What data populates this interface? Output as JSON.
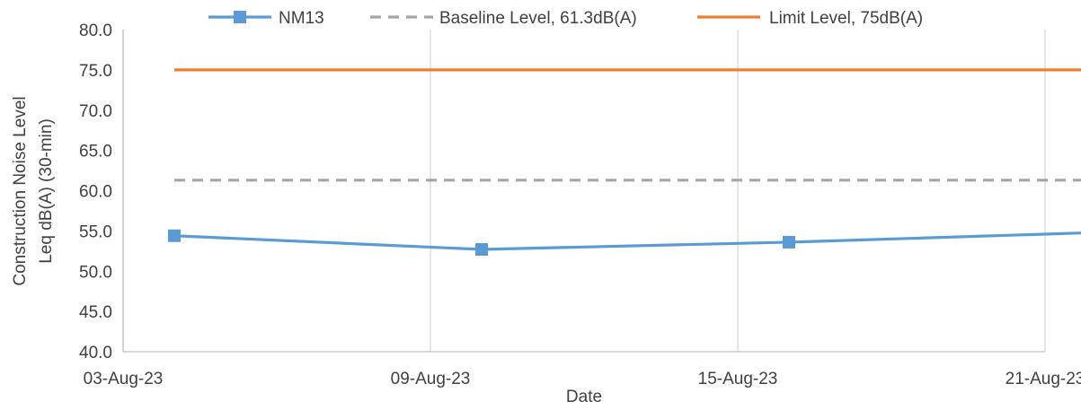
{
  "chart_data": {
    "type": "line",
    "xlabel": "Date",
    "ylabel_lines": [
      "Construction Noise Level",
      "Leq dB(A) (30-min)"
    ],
    "x_ticks": [
      "03-Aug-23",
      "09-Aug-23",
      "15-Aug-23",
      "21-Aug-23"
    ],
    "xlim": [
      "2023-08-03",
      "2023-08-21"
    ],
    "ylim": [
      40,
      80
    ],
    "y_ticks": [
      "40.0",
      "45.0",
      "50.0",
      "55.0",
      "60.0",
      "65.0",
      "70.0",
      "75.0",
      "80.0"
    ],
    "grid": "vertical",
    "legend_position": "top",
    "series": [
      {
        "name": "NM13",
        "color": "#5B9BD5",
        "style": "solid",
        "marker": "square",
        "points": [
          {
            "x": "2023-08-04",
            "y": 54.4
          },
          {
            "x": "2023-08-10",
            "y": 52.7
          },
          {
            "x": "2023-08-16",
            "y": 53.6
          },
          {
            "x": "2023-08-22",
            "y": 54.8
          }
        ]
      },
      {
        "name": "Baseline Level, 61.3dB(A)",
        "color": "#A5A5A5",
        "style": "dashed",
        "marker": "none",
        "points": [
          {
            "x": "2023-08-04",
            "y": 61.3
          },
          {
            "x": "2023-08-22",
            "y": 61.3
          }
        ]
      },
      {
        "name": "Limit Level, 75dB(A)",
        "color": "#ED7D31",
        "style": "solid",
        "marker": "none",
        "points": [
          {
            "x": "2023-08-04",
            "y": 75
          },
          {
            "x": "2023-08-22",
            "y": 75
          }
        ]
      }
    ]
  }
}
